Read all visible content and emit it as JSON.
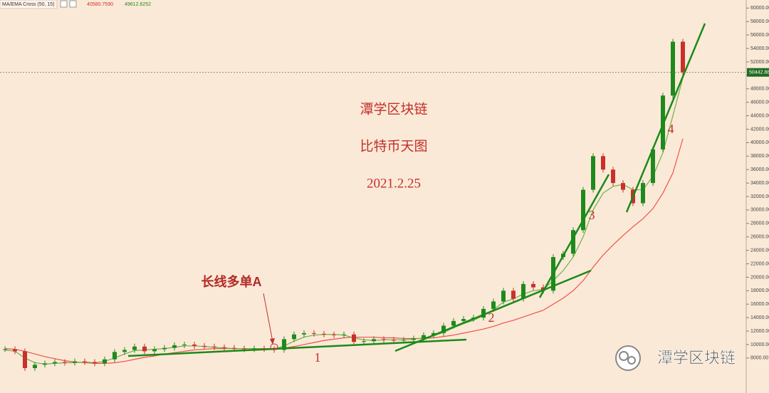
{
  "header": {
    "indicator": "MA/EMA Cross (50, 15)",
    "ema_value": "40580.7590",
    "ma_value": "49612.6252"
  },
  "chart_data": {
    "type": "candlestick",
    "up_color": "#1e8a1e",
    "down_color": "#c8302b",
    "series": [
      {
        "color": "#1e8a1e",
        "values": [
          9300,
          9000,
          6500,
          7000,
          7200,
          7400,
          7300,
          7500,
          7400,
          7200,
          7800,
          8900,
          9200,
          9700,
          9000,
          9300,
          9500,
          9900,
          10000,
          9800,
          9700,
          9600,
          9500,
          9400,
          9300,
          9400,
          9300,
          9200,
          10800,
          11500,
          11700,
          11600,
          11500,
          11400,
          11500,
          10400,
          10500,
          10800,
          10700,
          10600,
          10700,
          10900,
          11400,
          11700,
          12800,
          13500,
          13800,
          14000,
          15300,
          16400,
          18000,
          16800,
          19000,
          18500,
          18000,
          23000,
          23500,
          27000,
          33000,
          38000,
          36000,
          34000,
          33000,
          31000,
          34000,
          39000,
          47000,
          55000,
          50442.88
        ]
      },
      {
        "color": "#f0504a",
        "values": [
          9400,
          9300,
          9000,
          8600,
          8200,
          7900,
          7600,
          7400,
          7300,
          7200,
          7200,
          7300,
          7500,
          7800,
          8100,
          8300,
          8600,
          8800,
          9000,
          9200,
          9300,
          9400,
          9400,
          9400,
          9400,
          9400,
          9400,
          9400,
          9500,
          9700,
          10000,
          10300,
          10600,
          10800,
          11000,
          11100,
          11100,
          11100,
          11000,
          11000,
          10900,
          10900,
          10900,
          11000,
          11200,
          11400,
          11700,
          12000,
          12300,
          12700,
          13200,
          13600,
          14100,
          14600,
          15100,
          16000,
          16900,
          18000,
          19500,
          21500,
          23300,
          24800,
          26200,
          27500,
          28700,
          30200,
          32500,
          35500,
          40580.759
        ]
      },
      {
        "color": "#6fb04a",
        "values": [
          9200,
          9000,
          8000,
          7300,
          7100,
          7200,
          7300,
          7300,
          7400,
          7300,
          7500,
          8000,
          8600,
          9100,
          9200,
          9300,
          9400,
          9600,
          9800,
          9800,
          9700,
          9600,
          9500,
          9400,
          9400,
          9400,
          9300,
          9300,
          9800,
          10500,
          11100,
          11400,
          11500,
          11500,
          11400,
          11000,
          10700,
          10600,
          10700,
          10700,
          10700,
          10800,
          11000,
          11300,
          11800,
          12500,
          13100,
          13600,
          14300,
          15200,
          16300,
          16800,
          17500,
          18000,
          18200,
          19500,
          21000,
          23000,
          26000,
          30000,
          32500,
          33500,
          33800,
          33000,
          33000,
          35000,
          38500,
          44000,
          49612.6252
        ]
      }
    ],
    "current_price": {
      "value": 50442.88,
      "label": "50442.88"
    },
    "ylim": [
      2800,
      61200
    ],
    "yticks": [
      {
        "value": 8000,
        "label": "8000.00"
      },
      {
        "value": 10000,
        "label": "10000.00"
      },
      {
        "value": 12000,
        "label": "12000.00"
      },
      {
        "value": 14000,
        "label": "14000.00"
      },
      {
        "value": 16000,
        "label": "16000.00"
      },
      {
        "value": 18000,
        "label": "18000.00"
      },
      {
        "value": 20000,
        "label": "20000.00"
      },
      {
        "value": 22000,
        "label": "22000.00"
      },
      {
        "value": 24000,
        "label": "24000.00"
      },
      {
        "value": 26000,
        "label": "26000.00"
      },
      {
        "value": 28000,
        "label": "28000.00"
      },
      {
        "value": 30000,
        "label": "30000.00"
      },
      {
        "value": 32000,
        "label": "32000.00"
      },
      {
        "value": 34000,
        "label": "34000.00"
      },
      {
        "value": 36000,
        "label": "36000.00"
      },
      {
        "value": 38000,
        "label": "38000.00"
      },
      {
        "value": 40000,
        "label": "40000.00"
      },
      {
        "value": 42000,
        "label": "42000.00"
      },
      {
        "value": 44000,
        "label": "44000.00"
      },
      {
        "value": 46000,
        "label": "46000.00"
      },
      {
        "value": 48000,
        "label": "48000.00"
      },
      {
        "value": 50000,
        "label": "50000.00"
      },
      {
        "value": 52000,
        "label": "52000.00"
      },
      {
        "value": 54000,
        "label": "54000.00"
      },
      {
        "value": 56000,
        "label": "56000.00"
      },
      {
        "value": 58000,
        "label": "58000.00"
      },
      {
        "value": 60000,
        "label": "60000.00"
      }
    ],
    "annotations": [
      "潭学区块链",
      "比特币天图",
      "2021.2.25",
      "长线多单A",
      "1",
      "2",
      "3",
      "4"
    ],
    "watermark": "潭学区块链"
  }
}
